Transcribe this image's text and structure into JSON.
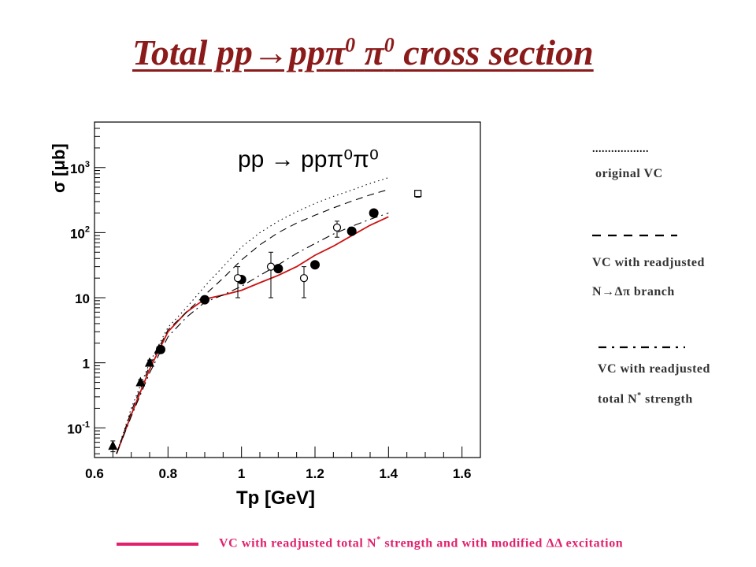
{
  "slide": {
    "title_prefix": "Total pp→pp",
    "title_pi1": "π",
    "title_exp1": "0",
    "title_pi2": "π",
    "title_exp2": "0",
    "title_suffix": " cross section"
  },
  "legend": {
    "original": {
      "line": "..................",
      "label": "original VC"
    },
    "readjusted_branch": {
      "line1": "VC with readjusted",
      "line2": "N→Δπ branch"
    },
    "readjusted_total": {
      "line1": "VC with readjusted",
      "line2_pre": "total N",
      "line2_sup": "*",
      "line2_post": " strength"
    }
  },
  "caption": {
    "pre": "VC with readjusted total N",
    "sup": "*",
    "post": " strength and with modified ΔΔ excitation",
    "color": "#e0226e"
  },
  "chart_data": {
    "type": "scatter",
    "title": "pp → ppπ⁰π⁰",
    "xlabel": "Tp [GeV]",
    "ylabel": "σ [μb]",
    "xlim": [
      0.6,
      1.65
    ],
    "ylim": [
      0.035,
      5000
    ],
    "log_y": true,
    "grid": false,
    "x_ticks": [
      "0.6",
      "0.8",
      "1",
      "1.2",
      "1.4",
      "1.6"
    ],
    "y_ticks": [
      {
        "value": 0.1,
        "base": "10",
        "exp": "-1"
      },
      {
        "value": 1,
        "base": "1",
        "exp": ""
      },
      {
        "value": 10,
        "base": "10",
        "exp": ""
      },
      {
        "value": 100,
        "base": "10",
        "exp": "2"
      },
      {
        "value": 1000,
        "base": "10",
        "exp": "3"
      }
    ],
    "points": [
      {
        "marker": "triangle",
        "points": [
          {
            "x": 0.65,
            "y": 0.053,
            "yerr": 0.01
          },
          {
            "x": 0.725,
            "y": 0.5,
            "yerr": 0.05
          },
          {
            "x": 0.75,
            "y": 1.0,
            "yerr": 0.1
          },
          {
            "x": 0.775,
            "y": 1.6,
            "yerr": 0.15
          }
        ]
      },
      {
        "marker": "filled-circle",
        "points": [
          {
            "x": 0.78,
            "y": 1.6
          },
          {
            "x": 0.9,
            "y": 9.3
          },
          {
            "x": 1.0,
            "y": 19
          },
          {
            "x": 1.1,
            "y": 28
          },
          {
            "x": 1.2,
            "y": 32
          },
          {
            "x": 1.3,
            "y": 105
          },
          {
            "x": 1.36,
            "y": 200
          }
        ]
      },
      {
        "marker": "open-circle",
        "points": [
          {
            "x": 0.99,
            "y": 20,
            "ylo": 10,
            "yhi": 30
          },
          {
            "x": 1.08,
            "y": 30,
            "ylo": 10,
            "yhi": 50
          },
          {
            "x": 1.17,
            "y": 20,
            "ylo": 10,
            "yhi": 30
          },
          {
            "x": 1.26,
            "y": 120,
            "ylo": 85,
            "yhi": 150
          }
        ]
      },
      {
        "marker": "open-square",
        "points": [
          {
            "x": 1.48,
            "y": 400,
            "ylo": 350,
            "yhi": 440
          }
        ]
      }
    ],
    "curves": [
      {
        "style": "solid",
        "color": "#cc1111",
        "points": [
          [
            0.66,
            0.04
          ],
          [
            0.7,
            0.16
          ],
          [
            0.75,
            0.8
          ],
          [
            0.8,
            3
          ],
          [
            0.85,
            6
          ],
          [
            0.9,
            9.5
          ],
          [
            0.95,
            11
          ],
          [
            1.0,
            13
          ],
          [
            1.05,
            17
          ],
          [
            1.1,
            22
          ],
          [
            1.15,
            30
          ],
          [
            1.2,
            45
          ],
          [
            1.25,
            62
          ],
          [
            1.3,
            90
          ],
          [
            1.35,
            130
          ],
          [
            1.4,
            175
          ]
        ]
      },
      {
        "style": "dotted",
        "color": "#000000",
        "points": [
          [
            0.66,
            0.04
          ],
          [
            0.7,
            0.2
          ],
          [
            0.75,
            1.0
          ],
          [
            0.8,
            3.5
          ],
          [
            0.85,
            7
          ],
          [
            0.9,
            15
          ],
          [
            0.95,
            30
          ],
          [
            1.0,
            60
          ],
          [
            1.05,
            100
          ],
          [
            1.1,
            150
          ],
          [
            1.15,
            210
          ],
          [
            1.2,
            280
          ],
          [
            1.25,
            360
          ],
          [
            1.3,
            450
          ],
          [
            1.35,
            570
          ],
          [
            1.4,
            700
          ]
        ]
      },
      {
        "style": "long-dash",
        "color": "#000000",
        "points": [
          [
            0.66,
            0.04
          ],
          [
            0.7,
            0.18
          ],
          [
            0.75,
            0.9
          ],
          [
            0.8,
            3.2
          ],
          [
            0.85,
            6
          ],
          [
            0.9,
            11
          ],
          [
            0.95,
            20
          ],
          [
            1.0,
            38
          ],
          [
            1.05,
            65
          ],
          [
            1.1,
            100
          ],
          [
            1.15,
            140
          ],
          [
            1.2,
            185
          ],
          [
            1.25,
            240
          ],
          [
            1.3,
            305
          ],
          [
            1.35,
            380
          ],
          [
            1.4,
            460
          ]
        ]
      },
      {
        "style": "dash-dot",
        "color": "#000000",
        "points": [
          [
            0.66,
            0.04
          ],
          [
            0.7,
            0.15
          ],
          [
            0.75,
            0.7
          ],
          [
            0.8,
            2.5
          ],
          [
            0.85,
            5
          ],
          [
            0.9,
            8.5
          ],
          [
            0.95,
            11
          ],
          [
            1.0,
            15
          ],
          [
            1.05,
            22
          ],
          [
            1.1,
            32
          ],
          [
            1.15,
            48
          ],
          [
            1.2,
            68
          ],
          [
            1.25,
            95
          ],
          [
            1.3,
            125
          ],
          [
            1.35,
            160
          ],
          [
            1.4,
            200
          ]
        ]
      }
    ]
  }
}
